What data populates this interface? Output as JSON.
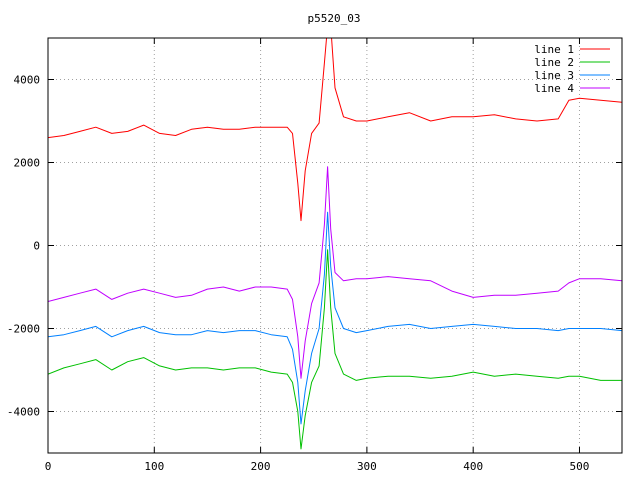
{
  "chart_data": {
    "type": "line",
    "title": "p5520_03",
    "xlabel": "",
    "ylabel": "",
    "xlim": [
      0,
      540
    ],
    "ylim": [
      -5000,
      5000
    ],
    "xticks": [
      0,
      100,
      200,
      300,
      400,
      500
    ],
    "yticks": [
      -4000,
      -2000,
      0,
      2000,
      4000
    ],
    "xtick_labels": [
      "0",
      "100",
      "200",
      "300",
      "400",
      "500"
    ],
    "ytick_labels": [
      "-4000",
      "-2000",
      "0",
      "2000",
      "4000"
    ],
    "grid": true,
    "legend_position": "top-right",
    "colors": {
      "frame": "#000000",
      "grid": "#a0a0a0",
      "background": "#ffffff"
    },
    "x": [
      0,
      15,
      30,
      45,
      60,
      75,
      90,
      105,
      120,
      135,
      150,
      165,
      180,
      195,
      210,
      225,
      230,
      235,
      238,
      242,
      248,
      255,
      260,
      263,
      266,
      270,
      278,
      290,
      300,
      320,
      340,
      360,
      380,
      400,
      420,
      440,
      460,
      480,
      490,
      500,
      520,
      540
    ],
    "series": [
      {
        "name": "line 1",
        "color": "#ff0000",
        "values": [
          2600,
          2650,
          2750,
          2850,
          2700,
          2750,
          2900,
          2700,
          2650,
          2800,
          2850,
          2800,
          2800,
          2850,
          2850,
          2850,
          2700,
          1500,
          600,
          1800,
          2700,
          2950,
          4400,
          5300,
          5300,
          3800,
          3100,
          3000,
          3000,
          3100,
          3200,
          3000,
          3100,
          3100,
          3150,
          3050,
          3000,
          3050,
          3500,
          3550,
          3500,
          3450
        ]
      },
      {
        "name": "line 2",
        "color": "#00c000",
        "values": [
          -3100,
          -2950,
          -2850,
          -2750,
          -3000,
          -2800,
          -2700,
          -2900,
          -3000,
          -2950,
          -2950,
          -3000,
          -2950,
          -2950,
          -3050,
          -3100,
          -3300,
          -4000,
          -4900,
          -4100,
          -3300,
          -2900,
          -1500,
          -100,
          -1500,
          -2600,
          -3100,
          -3250,
          -3200,
          -3150,
          -3150,
          -3200,
          -3150,
          -3050,
          -3150,
          -3100,
          -3150,
          -3200,
          -3150,
          -3150,
          -3250,
          -3250
        ]
      },
      {
        "name": "line 3",
        "color": "#0080ff",
        "values": [
          -2200,
          -2150,
          -2050,
          -1950,
          -2200,
          -2050,
          -1950,
          -2100,
          -2150,
          -2150,
          -2050,
          -2100,
          -2050,
          -2050,
          -2150,
          -2200,
          -2500,
          -3300,
          -4300,
          -3500,
          -2600,
          -2000,
          -700,
          800,
          -500,
          -1500,
          -2000,
          -2100,
          -2050,
          -1950,
          -1900,
          -2000,
          -1950,
          -1900,
          -1950,
          -2000,
          -2000,
          -2050,
          -2000,
          -2000,
          -2000,
          -2050
        ]
      },
      {
        "name": "line 4",
        "color": "#c000ff",
        "values": [
          -1350,
          -1250,
          -1150,
          -1050,
          -1300,
          -1150,
          -1050,
          -1150,
          -1250,
          -1200,
          -1050,
          -1000,
          -1100,
          -1000,
          -1000,
          -1050,
          -1300,
          -2200,
          -3200,
          -2300,
          -1400,
          -900,
          500,
          1900,
          400,
          -650,
          -850,
          -800,
          -800,
          -750,
          -800,
          -850,
          -1100,
          -1250,
          -1200,
          -1200,
          -1150,
          -1100,
          -900,
          -800,
          -800,
          -850
        ]
      }
    ]
  }
}
